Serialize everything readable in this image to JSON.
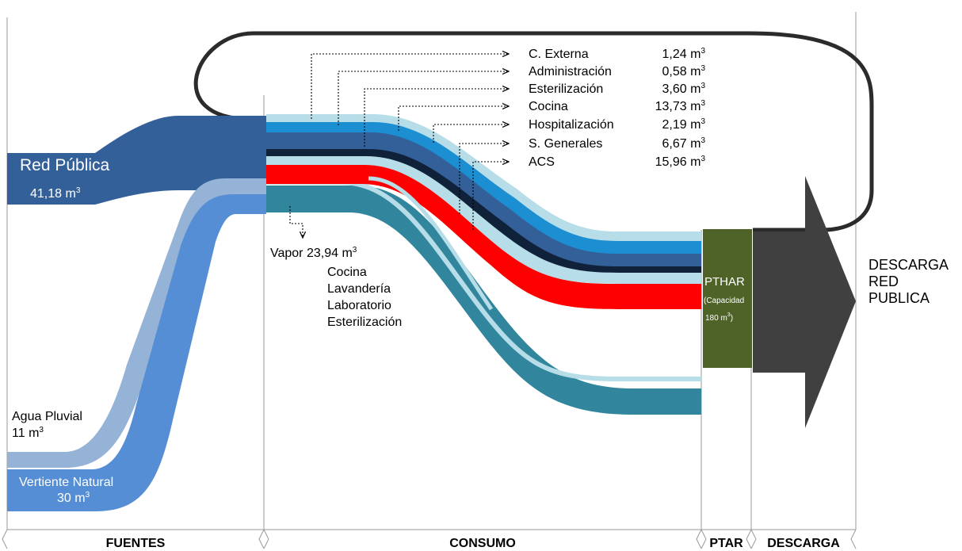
{
  "sources": {
    "red_publica": {
      "name": "Red Pública",
      "value": "41,18",
      "unit": "m",
      "unit_exp": "3"
    },
    "agua_pluvial": {
      "name": "Agua Pluvial",
      "value": "11",
      "unit": "m",
      "unit_exp": "3"
    },
    "vertiente_natural": {
      "name": "Vertiente Natural",
      "value": "30",
      "unit": "m",
      "unit_exp": "3"
    }
  },
  "consumers": [
    {
      "name": "C. Externa",
      "value": "1,24 m",
      "exp": "3"
    },
    {
      "name": "Administración",
      "value": "0,58 m",
      "exp": "3"
    },
    {
      "name": "Esterilización",
      "value": "3,60 m",
      "exp": "3"
    },
    {
      "name": "Cocina",
      "value": "13,73 m",
      "exp": "3"
    },
    {
      "name": "Hospitalización",
      "value": "2,19 m",
      "exp": "3"
    },
    {
      "name": "S. Generales",
      "value": "6,67 m",
      "exp": "3"
    },
    {
      "name": "ACS",
      "value": "15,96 m",
      "exp": "3"
    }
  ],
  "vapor": {
    "label": "Vapor 23,94 m",
    "exp": "3",
    "uses": [
      "Cocina",
      "Lavandería",
      "Laboratorio",
      "Esterilización"
    ]
  },
  "ptar": {
    "name": "PTHAR",
    "capacity_line1": "(Capacidad",
    "capacity_line2": "180 m",
    "capacity_exp": "3",
    "capacity_close": ")"
  },
  "discharge": {
    "lines": [
      "DESCARGA",
      "RED",
      "PUBLICA"
    ]
  },
  "sections": [
    "FUENTES",
    "CONSUMO",
    "PTAR",
    "DESCARGA"
  ],
  "colors": {
    "red_publica": "#34609a",
    "agua_pluvial": "#95b3d7",
    "vertiente_natural": "#558ed5",
    "light_blue": "#b7dde8",
    "cyan": "#1b8fd2",
    "red": "#ff0000",
    "navy": "#10213a",
    "teal": "#31859c",
    "ptar": "#4f6228",
    "arrow": "#404040",
    "loop": "#2b2b2b"
  }
}
